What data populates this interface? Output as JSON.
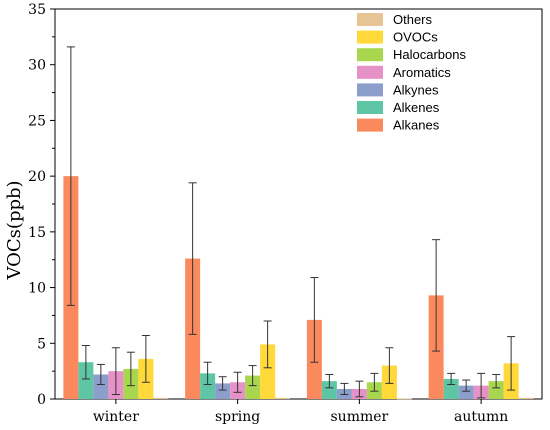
{
  "chart_data": {
    "type": "bar",
    "title": "",
    "xlabel": "",
    "ylabel": "VOCs(ppb)",
    "ylim": [
      0,
      35
    ],
    "yticks": [
      0,
      5,
      10,
      15,
      20,
      25,
      30,
      35
    ],
    "grid": false,
    "legend_position": "top-right",
    "legend_order": [
      "Others",
      "OVOCs",
      "Halocarbons",
      "Aromatics",
      "Alkynes",
      "Alkenes",
      "Alkanes"
    ],
    "categories": [
      "winter",
      "spring",
      "summer",
      "autumn"
    ],
    "series": [
      {
        "name": "Alkanes",
        "color": "#FA8A5E",
        "values": [
          20.0,
          12.6,
          7.1,
          9.3
        ],
        "errors": [
          11.6,
          6.8,
          3.8,
          5.0
        ]
      },
      {
        "name": "Alkenes",
        "color": "#5FC6A5",
        "values": [
          3.3,
          2.3,
          1.6,
          1.8
        ],
        "errors": [
          1.5,
          1.0,
          0.6,
          0.5
        ]
      },
      {
        "name": "Alkynes",
        "color": "#8C9FCC",
        "values": [
          2.2,
          1.4,
          0.9,
          1.2
        ],
        "errors": [
          0.9,
          0.6,
          0.5,
          0.5
        ]
      },
      {
        "name": "Aromatics",
        "color": "#E791C9",
        "values": [
          2.5,
          1.5,
          0.9,
          1.2
        ],
        "errors": [
          2.1,
          0.9,
          0.7,
          1.1
        ]
      },
      {
        "name": "Halocarbons",
        "color": "#A8D64F",
        "values": [
          2.7,
          2.1,
          1.5,
          1.6
        ],
        "errors": [
          1.5,
          0.9,
          0.8,
          0.6
        ]
      },
      {
        "name": "OVOCs",
        "color": "#FFD83A",
        "values": [
          3.6,
          4.9,
          3.0,
          3.2
        ],
        "errors": [
          2.1,
          2.1,
          1.6,
          2.4
        ]
      },
      {
        "name": "Others",
        "color": "#E6C494",
        "values": [
          0.1,
          0.1,
          0.05,
          0.1
        ],
        "errors": [
          0,
          0,
          0,
          0
        ]
      }
    ]
  }
}
